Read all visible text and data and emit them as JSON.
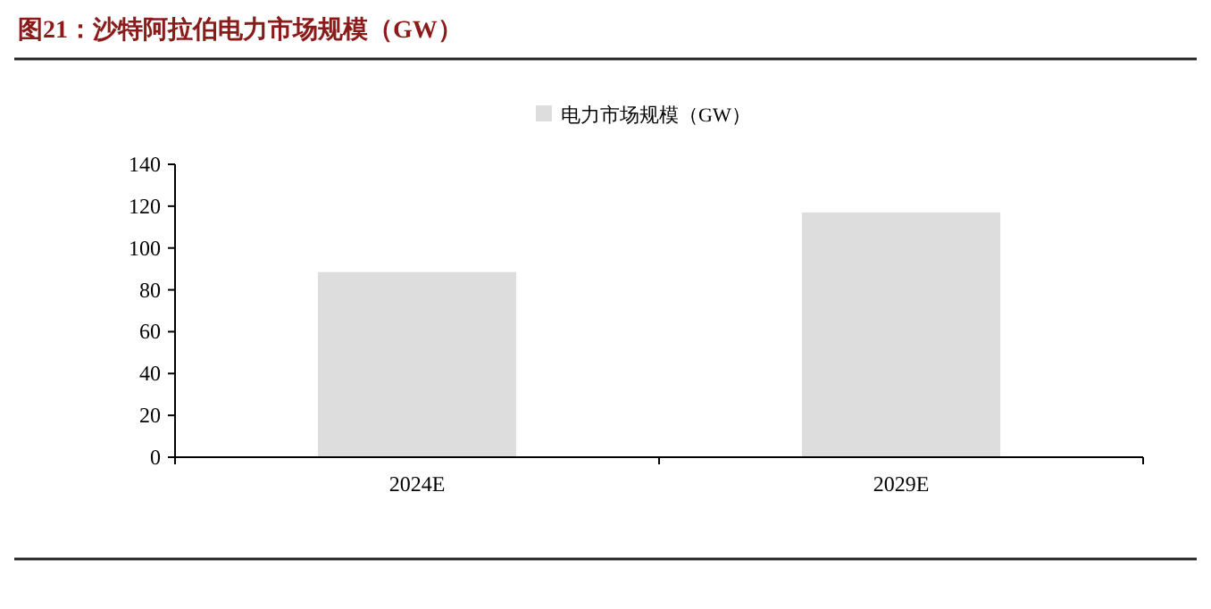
{
  "chart_data": {
    "type": "bar",
    "title": "图21：沙特阿拉伯电力市场规模（GW）",
    "categories": [
      "2024E",
      "2029E"
    ],
    "series": [
      {
        "name": "电力市场规模（GW）",
        "color": "#dddddd",
        "values": [
          88.5,
          117
        ]
      }
    ],
    "ylim": [
      0,
      140
    ],
    "yticks": [
      0,
      20,
      40,
      60,
      80,
      100,
      120,
      140
    ],
    "legend": "top",
    "grid": false
  }
}
